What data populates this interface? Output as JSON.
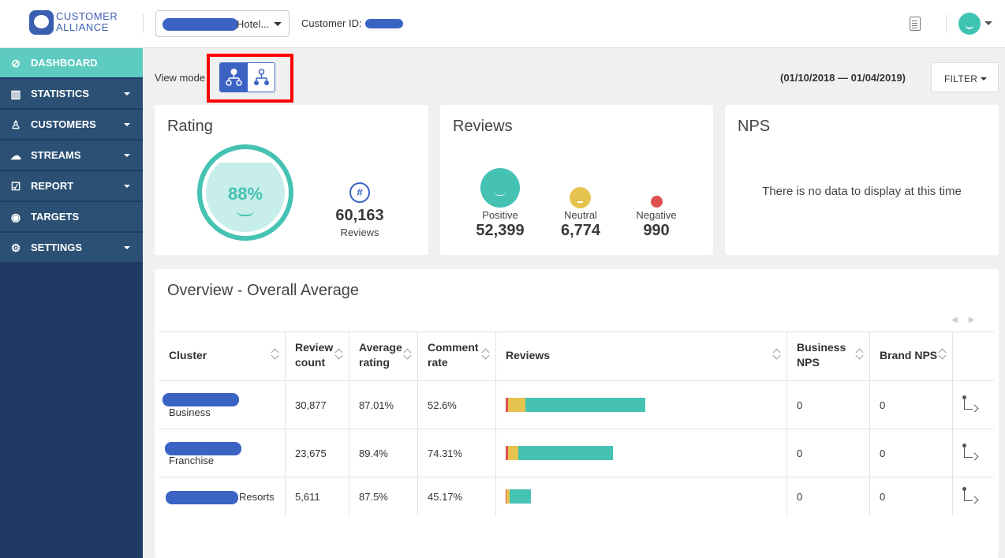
{
  "header": {
    "logo_text": "CUSTOMER\nALLIANCE",
    "hotel_select_value": "Hotel...",
    "customer_id_label": "Customer ID:"
  },
  "sidebar": {
    "items": [
      {
        "label": "DASHBOARD",
        "icon": "compass-icon",
        "active": true,
        "has_caret": false
      },
      {
        "label": "STATISTICS",
        "icon": "bar-chart-icon",
        "active": false,
        "has_caret": true
      },
      {
        "label": "CUSTOMERS",
        "icon": "user-icon",
        "active": false,
        "has_caret": true
      },
      {
        "label": "STREAMS",
        "icon": "chat-bubbles-icon",
        "active": false,
        "has_caret": true
      },
      {
        "label": "REPORT",
        "icon": "clipboard-check-icon",
        "active": false,
        "has_caret": true
      },
      {
        "label": "TARGETS",
        "icon": "target-icon",
        "active": false,
        "has_caret": false
      },
      {
        "label": "SETTINGS",
        "icon": "gear-icon",
        "active": false,
        "has_caret": true
      }
    ]
  },
  "toolbar": {
    "view_mode_label": "View mode",
    "date_range": "(01/10/2018 — 01/04/2019)",
    "filter_label": "FILTER"
  },
  "rating_card": {
    "title": "Rating",
    "percent": "88%",
    "review_total": "60,163",
    "review_label": "Reviews"
  },
  "reviews_card": {
    "title": "Reviews",
    "positive_label": "Positive",
    "positive_value": "52,399",
    "neutral_label": "Neutral",
    "neutral_value": "6,774",
    "negative_label": "Negative",
    "negative_value": "990"
  },
  "nps_card": {
    "title": "NPS",
    "empty_text": "There is no data to display at this time"
  },
  "overview": {
    "title": "Overview - Overall Average",
    "columns": {
      "cluster": "Cluster",
      "review_count_1": "Review",
      "review_count_2": "count",
      "average_rating_1": "Average",
      "average_rating_2": "rating",
      "comment_rate_1": "Comment",
      "comment_rate_2": "rate",
      "reviews": "Reviews",
      "business_nps_1": "Business",
      "business_nps_2": "NPS",
      "brand_nps": "Brand NPS"
    },
    "rows": [
      {
        "cluster": "Business",
        "review_count": "30,877",
        "average_rating": "87.01%",
        "comment_rate": "52.6%",
        "business_nps": "0",
        "brand_nps": "0",
        "bar_negative": 3,
        "bar_neutral": 22,
        "bar_positive": 152
      },
      {
        "cluster": "Franchise",
        "review_count": "23,675",
        "average_rating": "89.4%",
        "comment_rate": "74.31%",
        "business_nps": "0",
        "brand_nps": "0",
        "bar_negative": 3,
        "bar_neutral": 13,
        "bar_positive": 120
      },
      {
        "cluster": "Resorts",
        "review_count": "5,611",
        "average_rating": "87.5%",
        "comment_rate": "45.17%",
        "business_nps": "0",
        "brand_nps": "0",
        "bar_negative": 1,
        "bar_neutral": 4,
        "bar_positive": 27
      }
    ]
  },
  "colors": {
    "accent_teal": "#45c2b2",
    "brand_blue": "#3b63c4",
    "sidebar_bg": "#1f3a64",
    "neutral_yellow": "#e6c34f",
    "negative_red": "#e05050",
    "highlight_red": "#ff0000"
  }
}
